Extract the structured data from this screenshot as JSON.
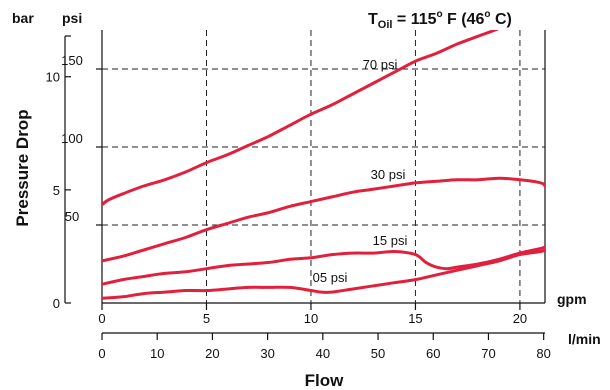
{
  "chart_data": {
    "type": "line",
    "title": {
      "prefix": "T",
      "subscript": "Oil",
      "eq": " = 115",
      "sup1": "o",
      "mid": " F  (46",
      "sup2": "o",
      "suffix": " C)"
    },
    "xlabel": "Flow",
    "ylabel": "Pressure Drop",
    "x_unit_primary": "gpm",
    "x_unit_secondary": "l/min",
    "y_unit_left": "bar",
    "y_unit_right": "psi",
    "x_ticks_gpm": [
      "0",
      "5",
      "10",
      "15",
      "20"
    ],
    "x_ticks_lpm": [
      "0",
      "10",
      "20",
      "30",
      "40",
      "50",
      "60",
      "70",
      "80"
    ],
    "y_ticks_bar": [
      "0",
      "5",
      "10"
    ],
    "y_ticks_psi": [
      "50",
      "100",
      "150"
    ],
    "xlim_gpm": [
      0,
      21.2
    ],
    "ylim_psi": [
      0,
      175
    ],
    "grid": "dashed at 5 gpm and 50 psi intervals",
    "series_color": "#e0203c",
    "series": [
      {
        "name": "70 psi",
        "x": [
          0,
          0.3,
          1,
          2,
          3,
          4,
          5,
          6,
          7,
          8,
          9,
          10,
          11,
          12,
          13,
          14,
          15,
          16,
          17,
          18,
          19,
          20
        ],
        "y": [
          63,
          66,
          70,
          75,
          79,
          84,
          90,
          95,
          101,
          107,
          114,
          121,
          127,
          134,
          141,
          148,
          155,
          160,
          166,
          171,
          176,
          182
        ]
      },
      {
        "name": "30 psi",
        "x": [
          0,
          1,
          2,
          3,
          4,
          5,
          6,
          7,
          8,
          9,
          10,
          11,
          12,
          13,
          14,
          15,
          16,
          17,
          18,
          19,
          20,
          21,
          21.2
        ],
        "y": [
          27,
          30,
          34,
          38,
          42,
          47,
          51,
          55,
          58,
          62,
          65,
          68,
          71,
          73,
          75,
          77,
          78,
          79,
          79,
          80,
          79,
          77,
          75
        ]
      },
      {
        "name": "15 psi",
        "x": [
          0,
          1,
          2,
          3,
          4,
          5,
          6,
          7,
          8,
          9,
          10,
          11,
          12,
          13,
          14,
          15,
          15.5,
          16,
          16.5,
          17,
          18,
          19,
          20,
          21,
          21.2
        ],
        "y": [
          12,
          15,
          17,
          19,
          20,
          22,
          24,
          25,
          26,
          28,
          29,
          31,
          32,
          32,
          33,
          31,
          26,
          23,
          22,
          23,
          25,
          28,
          32,
          35,
          36
        ]
      },
      {
        "name": "05 psi",
        "x": [
          0,
          1,
          2,
          3,
          4,
          5,
          6,
          7,
          8,
          9,
          10,
          10.5,
          11,
          12,
          13,
          14,
          15,
          16,
          17,
          18,
          19,
          20,
          21,
          21.2
        ],
        "y": [
          3,
          4,
          6,
          7,
          8,
          8,
          9,
          10,
          10,
          10,
          8,
          7,
          7,
          9,
          11,
          13,
          15,
          18,
          21,
          24,
          27,
          31,
          33,
          34
        ]
      }
    ]
  }
}
